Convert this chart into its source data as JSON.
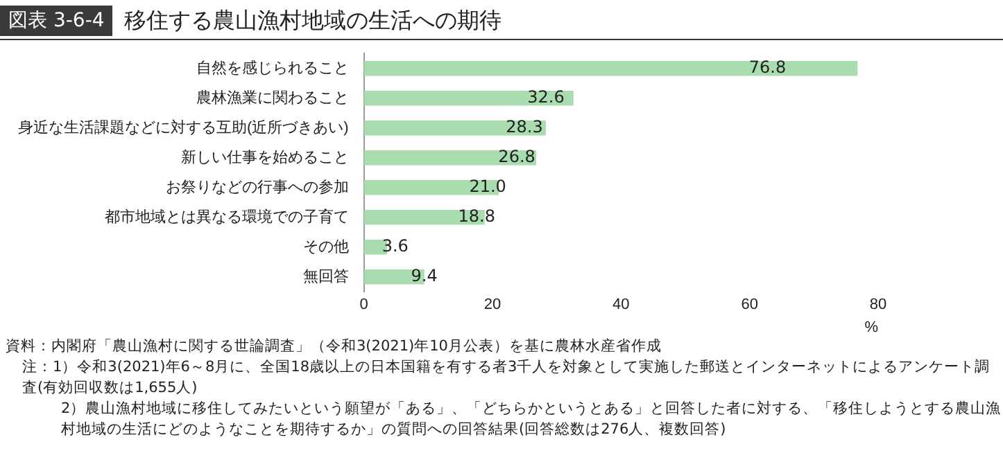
{
  "chart_data": {
    "type": "bar",
    "orientation": "horizontal",
    "title": "図表 3-6-4",
    "subtitle": "移住する農山漁村地域の生活への期待",
    "categories": [
      "自然を感じられること",
      "農林漁業に関わること",
      "身近な生活課題などに対する互助(近所づきあい)",
      "新しい仕事を始めること",
      "お祭りなどの行事への参加",
      "都市地域とは異なる環境での子育て",
      "その他",
      "無回答"
    ],
    "values": [
      76.8,
      32.6,
      28.3,
      26.8,
      21.0,
      18.8,
      3.6,
      9.4
    ],
    "value_labels": [
      "76.8",
      "32.6",
      "28.3",
      "26.8",
      "21.0",
      "18.8",
      "3.6",
      "9.4"
    ],
    "color": "#a9dcae",
    "xlim": [
      0,
      80
    ],
    "xticks": [
      0,
      20,
      40,
      60,
      80
    ],
    "xlabel": "%",
    "grid": false,
    "legend": false,
    "annotations": [
      "資料：内閣府「農山漁村に関する世論調査」（令和3(2021)年10月公表）を基に農林水産省作成",
      "注：1）令和3(2021)年6～8月に、全国18歳以上の日本国籍を有する者3千人を対象として実施した郵送とインターネットによるアンケート調査(有効回収数は1,655人)",
      "2）農山漁村地域に移住してみたいという願望が「ある」、「どちらかというとある」と回答した者に対する、「移住しようとする農山漁村地域の生活にどのようなことを期待するか」の質問への回答結果(回答総数は276人、複数回答)"
    ]
  }
}
